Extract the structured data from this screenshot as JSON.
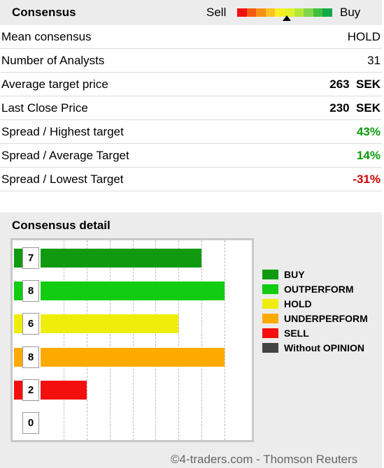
{
  "consensus": {
    "title": "Consensus",
    "sell_label": "Sell",
    "buy_label": "Buy",
    "gauge_colors": [
      "#ee1111",
      "#f55a14",
      "#f79019",
      "#f9c321",
      "#f7ef23",
      "#e2f22a",
      "#b5e73a",
      "#7fd64a",
      "#3fbf3f",
      "#13a84a"
    ],
    "rows": [
      {
        "label": "Mean consensus",
        "value": "HOLD",
        "bold": false,
        "color": "#000000"
      },
      {
        "label": "Number of Analysts",
        "value": "31",
        "bold": false,
        "color": "#000000"
      },
      {
        "label": "Average target price",
        "value": "263  SEK",
        "bold": true,
        "color": "#000000"
      },
      {
        "label": "Last Close Price",
        "value": "230  SEK",
        "bold": true,
        "color": "#000000"
      },
      {
        "label": "Spread / Highest target",
        "value": "43%",
        "bold": true,
        "color": "#0a9a0a"
      },
      {
        "label": "Spread / Average Target",
        "value": "14%",
        "bold": true,
        "color": "#0a9a0a"
      },
      {
        "label": "Spread / Lowest Target",
        "value": "-31%",
        "bold": true,
        "color": "#cc0000"
      }
    ]
  },
  "detail": {
    "title": "Consensus detail",
    "credit": "©4-traders.com - Thomson Reuters"
  },
  "chart_data": {
    "type": "bar",
    "orientation": "horizontal",
    "categories": [
      "BUY",
      "OUTPERFORM",
      "HOLD",
      "UNDERPERFORM",
      "SELL",
      "Without OPINION"
    ],
    "values": [
      7,
      8,
      6,
      8,
      2,
      0
    ],
    "colors": [
      "#109a10",
      "#11cc11",
      "#eeee0a",
      "#fcaa00",
      "#f40f0f",
      "#444444"
    ],
    "xlim": [
      0,
      8.5
    ],
    "grid": true,
    "legend": "right"
  }
}
